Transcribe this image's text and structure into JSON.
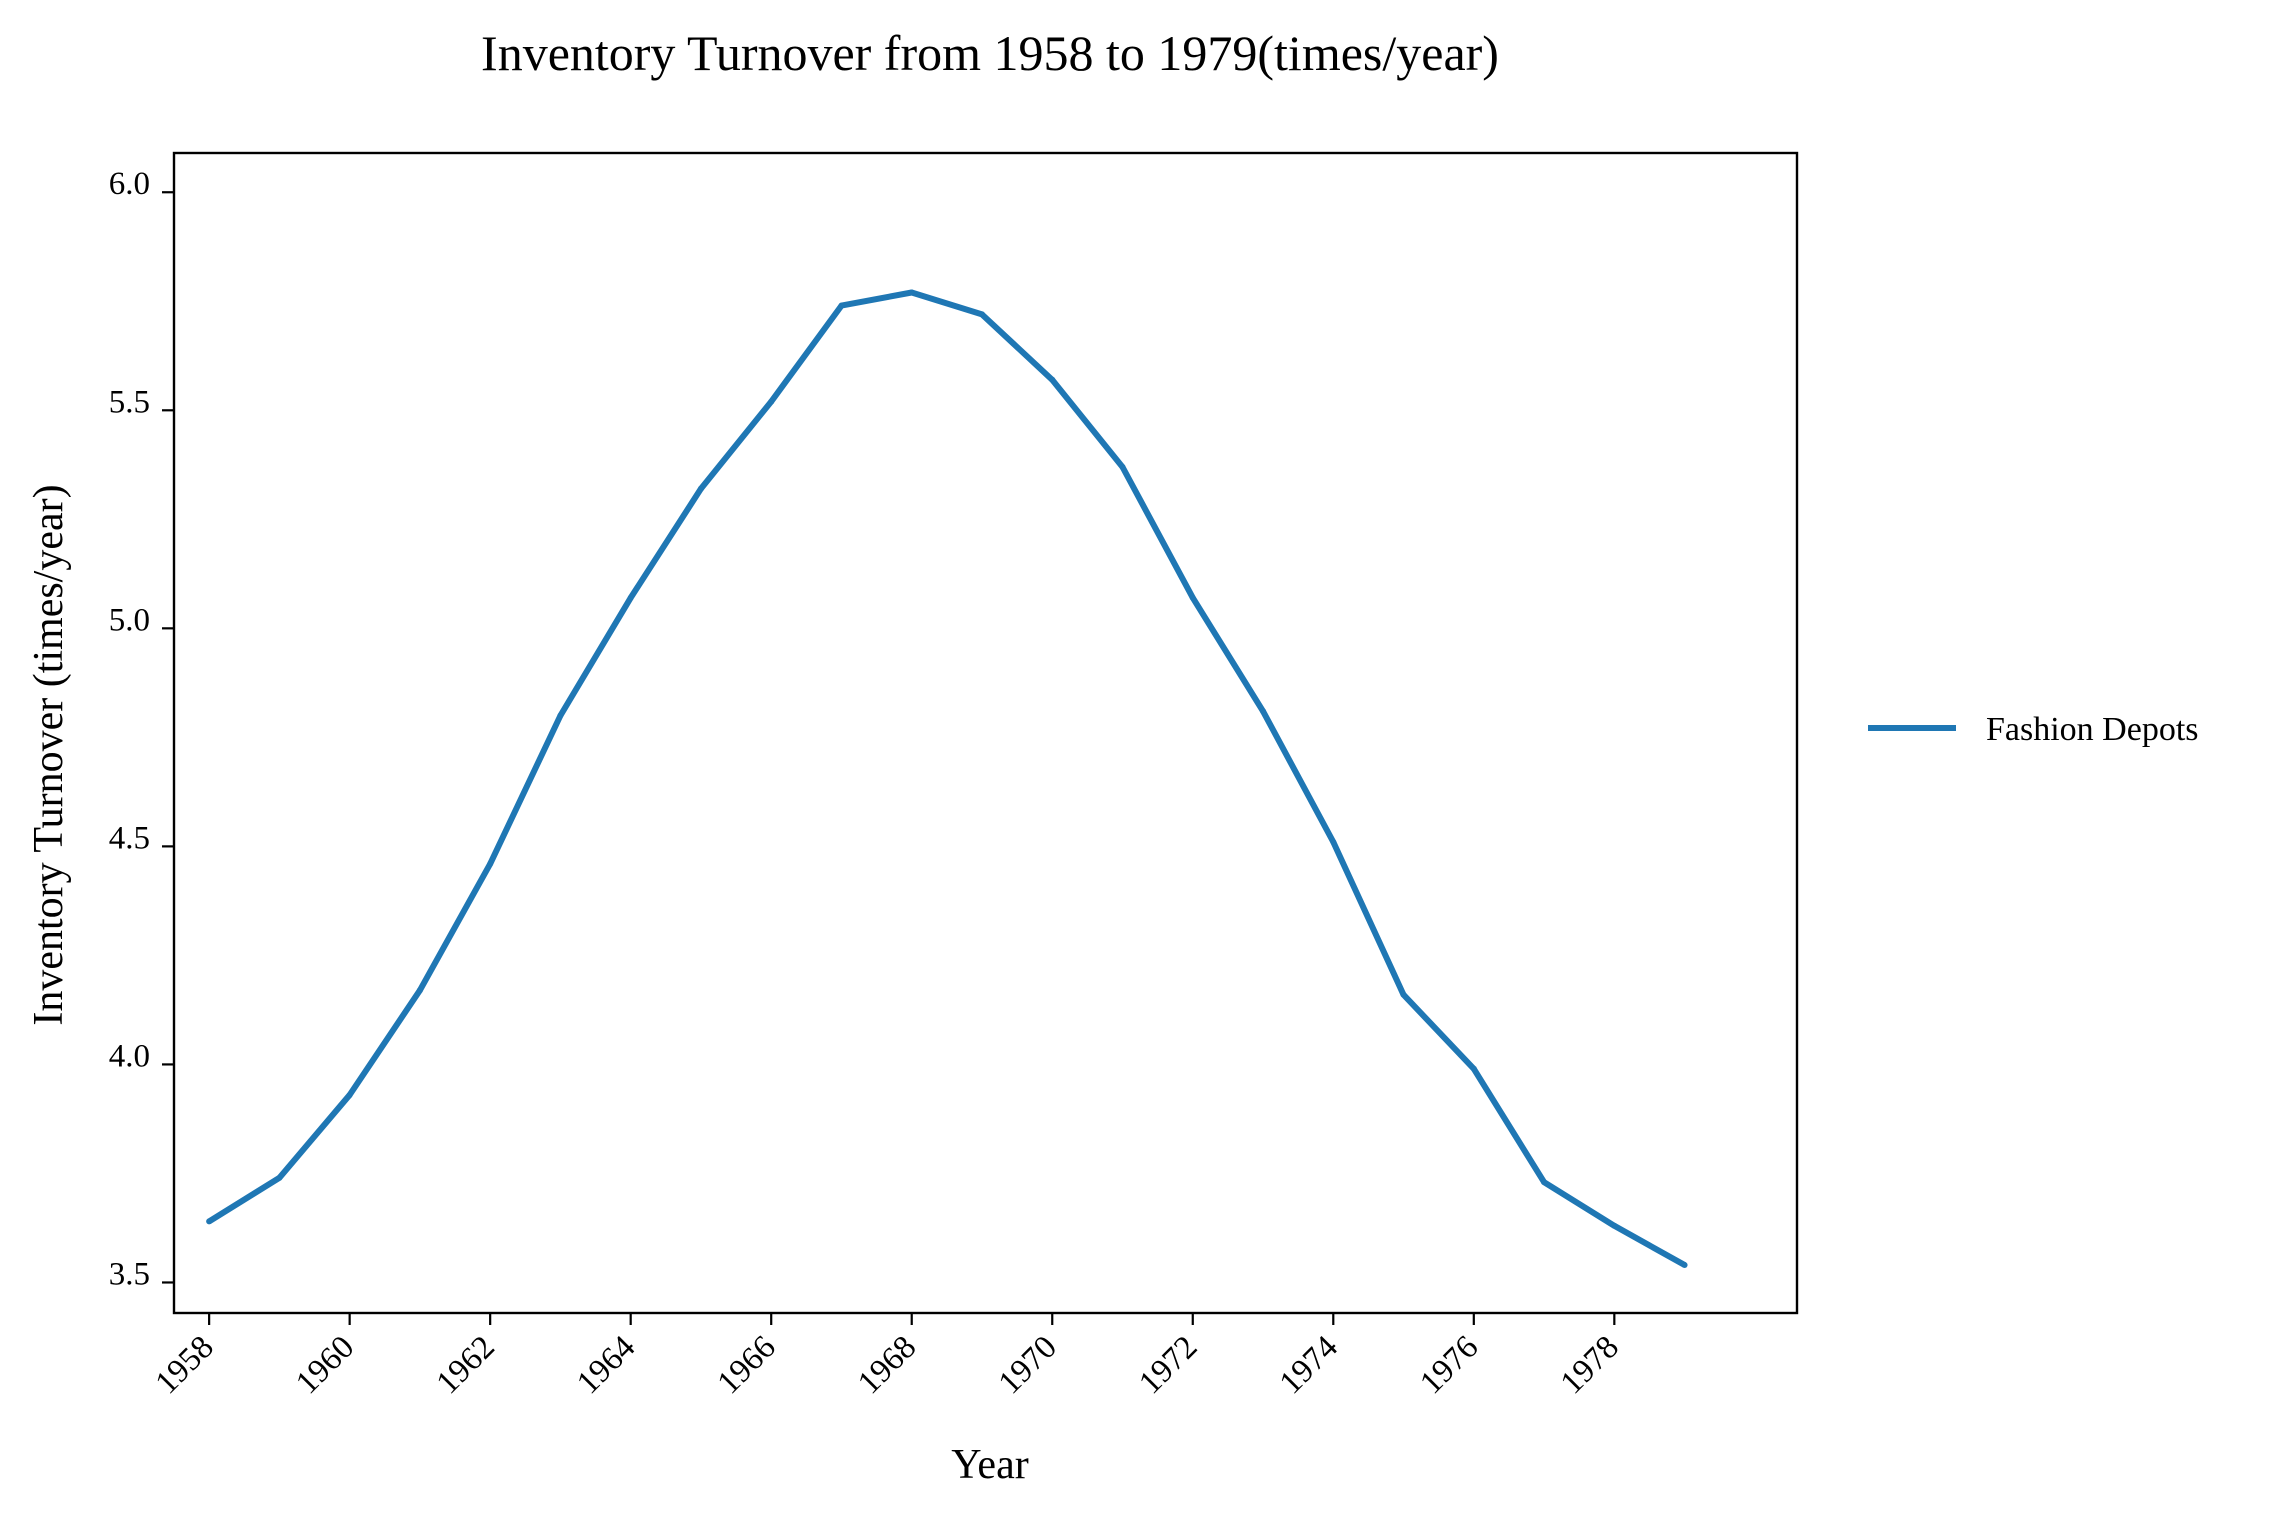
{
  "chart_data": {
    "type": "line",
    "title": "Inventory Turnover from 1958 to 1979(times/year)",
    "xlabel": "Year",
    "ylabel": "Inventory Turnover (times/year)",
    "x": [
      1958,
      1959,
      1960,
      1961,
      1962,
      1963,
      1964,
      1965,
      1966,
      1967,
      1968,
      1969,
      1970,
      1971,
      1972,
      1973,
      1974,
      1975,
      1976,
      1977,
      1978,
      1979
    ],
    "series": [
      {
        "name": "Fashion Depots",
        "color": "#1f77b4",
        "values": [
          3.64,
          3.74,
          3.93,
          4.17,
          4.46,
          4.8,
          5.07,
          5.32,
          5.52,
          5.74,
          5.77,
          5.72,
          5.57,
          5.37,
          5.07,
          4.81,
          4.51,
          4.16,
          3.99,
          3.73,
          3.63,
          3.54
        ]
      }
    ],
    "xlim": [
      1957.5,
      1980.6
    ],
    "ylim": [
      3.43,
      6.09
    ],
    "xticks": [
      1958,
      1960,
      1962,
      1964,
      1966,
      1968,
      1970,
      1972,
      1974,
      1976,
      1978
    ],
    "yticks": [
      "3.5",
      "4.0",
      "4.5",
      "5.0",
      "5.5",
      "6.0"
    ],
    "grid": false,
    "legend_position": "right"
  }
}
